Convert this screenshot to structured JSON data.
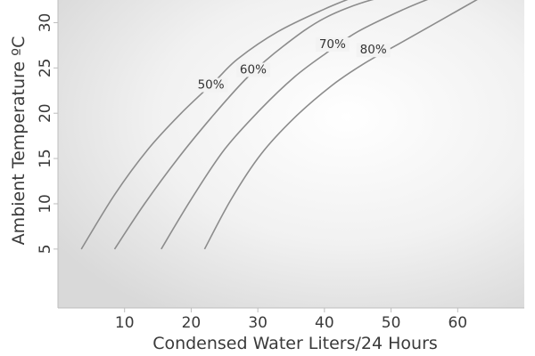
{
  "chart_data": {
    "type": "line",
    "title": "",
    "xlabel": "Condensed Water Liters/24 Hours",
    "ylabel": "Ambient Temperature ºC",
    "xlim": [
      0,
      70
    ],
    "ylim": [
      -1.5,
      32.5
    ],
    "xticks": [
      "10",
      "20",
      "30",
      "40",
      "50",
      "60"
    ],
    "yticks": [
      "5",
      "10",
      "15",
      "20",
      "25",
      "30"
    ],
    "grid": false,
    "background": "radial-gradient-light-gray",
    "series": [
      {
        "name": "50%",
        "x": [
          3.5,
          8.5,
          13.5,
          18.5,
          23.5,
          27,
          33,
          40,
          45
        ],
        "y": [
          5,
          11,
          16,
          20,
          23.5,
          26,
          29,
          31.5,
          33
        ]
      },
      {
        "name": "60%",
        "x": [
          8.5,
          13,
          18,
          23,
          28.5,
          34,
          40,
          47,
          52
        ],
        "y": [
          5,
          10,
          15,
          19.5,
          24,
          27.5,
          30.5,
          32.5,
          33
        ]
      },
      {
        "name": "70%",
        "x": [
          15.5,
          20,
          25,
          30.5,
          35.5,
          40,
          45,
          52,
          57
        ],
        "y": [
          5,
          10.5,
          16,
          20.5,
          24,
          26.5,
          29,
          31.5,
          33
        ]
      },
      {
        "name": "80%",
        "x": [
          22,
          26,
          30.5,
          35.5,
          41,
          46,
          52,
          58,
          64
        ],
        "y": [
          5,
          10.5,
          15.5,
          19.5,
          23,
          25.5,
          28,
          30.5,
          33
        ]
      }
    ]
  }
}
